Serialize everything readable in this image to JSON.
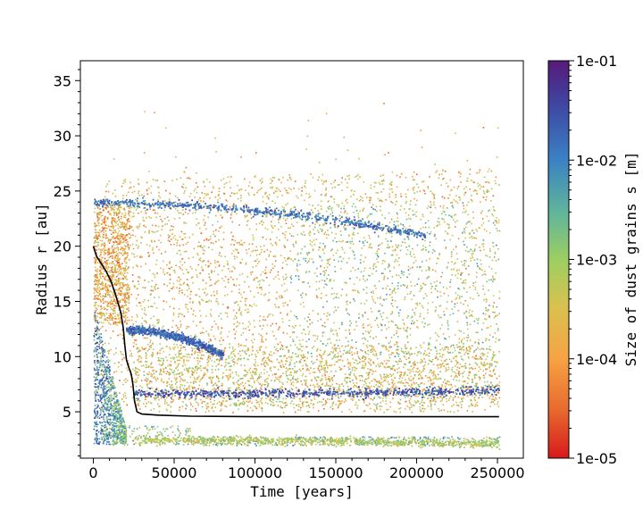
{
  "chart_data": {
    "type": "scatter",
    "xlabel": "Time [years]",
    "ylabel": "Radius r [au]",
    "xlim": [
      -8000,
      266000
    ],
    "ylim": [
      0.8,
      36.8
    ],
    "x_ticks": [
      0,
      50000,
      100000,
      150000,
      200000,
      250000
    ],
    "y_ticks": [
      5,
      10,
      15,
      20,
      25,
      30,
      35
    ],
    "grid": false,
    "colorbar": {
      "label": "Size of dust grains s [m]",
      "scale": "log",
      "min": 1e-05,
      "max": 0.1,
      "ticks": [
        "1e-01",
        "1e-02",
        "1e-03",
        "1e-04",
        "1e-05"
      ],
      "colors": [
        "#d7191c",
        "#e8692e",
        "#f6a343",
        "#d9c14f",
        "#9ccf62",
        "#5fb49b",
        "#3b82c4",
        "#3d4fa8",
        "#4a2d8c",
        "#5a1a7a"
      ]
    },
    "dust_bands": [
      {
        "r_start": 24.0,
        "r_end": 21.0,
        "t_end": 205000,
        "log_size": -2.2
      },
      {
        "r_start": 12.5,
        "r_end": 10.2,
        "t_start": 20000,
        "t_end": 80000,
        "log_size": -2.1
      },
      {
        "r_start": 6.7,
        "r_end": 7.0,
        "t_start": 25000,
        "t_end": 251000,
        "log_size": -1.9
      },
      {
        "r_start": 2.5,
        "r_end": 2.1,
        "t_start": 25000,
        "t_end": 251000,
        "log_size": -3.4
      }
    ],
    "series": [
      {
        "style": "line",
        "color": "#000000",
        "x": [
          0,
          2000,
          5000,
          8000,
          11000,
          14000,
          17000,
          18500,
          19500,
          20500,
          22000,
          23500,
          24500,
          25500,
          27000,
          30000,
          40000,
          60000,
          100000,
          150000,
          200000,
          251000
        ],
        "y": [
          20.0,
          19.1,
          18.4,
          17.7,
          16.8,
          15.5,
          14.0,
          12.6,
          11.0,
          9.7,
          9.0,
          8.4,
          7.5,
          6.0,
          5.0,
          4.8,
          4.7,
          4.6,
          4.55,
          4.55,
          4.55,
          4.55
        ]
      }
    ]
  }
}
